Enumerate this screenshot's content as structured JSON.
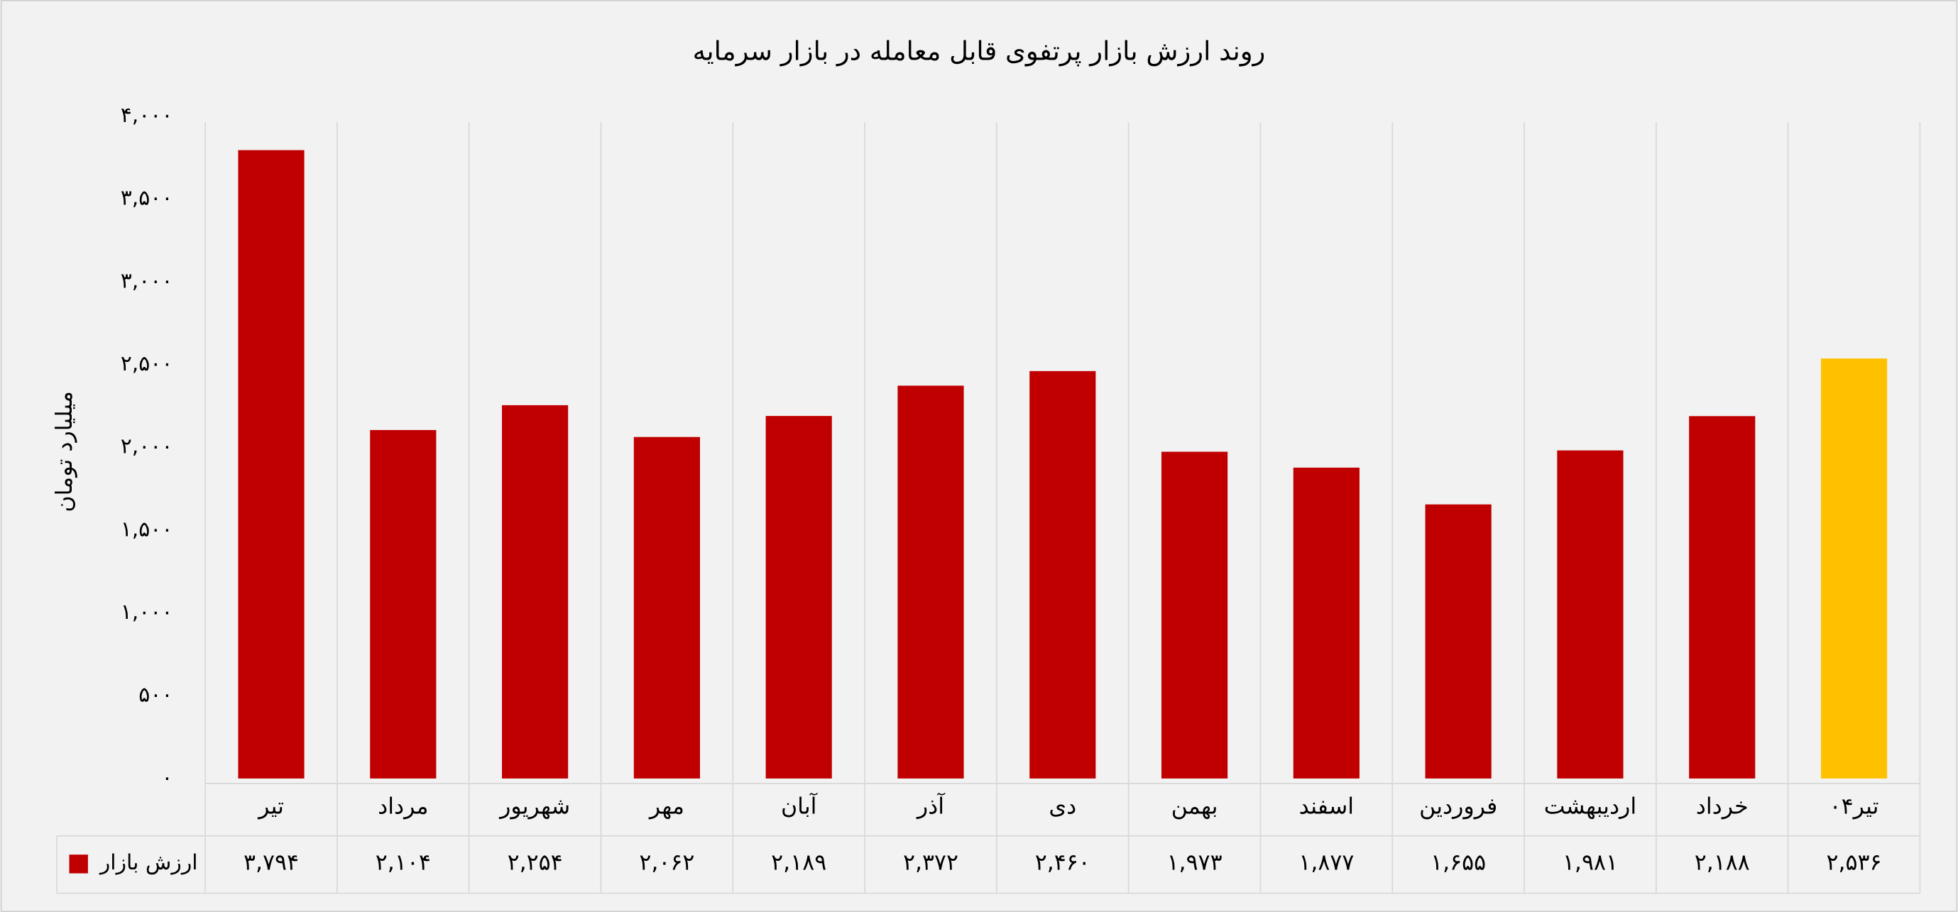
{
  "chart_data": {
    "type": "bar",
    "title": "روند ارزش بازار پرتفوی قابل معامله در بازار سرمایه",
    "y_label": "میلیارد تومان",
    "categories": [
      "تیر",
      "مرداد",
      "شهریور",
      "مهر",
      "آبان",
      "آذر",
      "دی",
      "بهمن",
      "اسفند",
      "فروردین",
      "اردیبهشت",
      "خرداد",
      "تیر۰۴"
    ],
    "series": [
      {
        "name": "ارزش بازار",
        "color": "#c00000",
        "colors": [
          "#c00000",
          "#c00000",
          "#c00000",
          "#c00000",
          "#c00000",
          "#c00000",
          "#c00000",
          "#c00000",
          "#c00000",
          "#c00000",
          "#c00000",
          "#c00000",
          "#ffc000"
        ],
        "values": [
          3794,
          2104,
          2254,
          2062,
          2189,
          2372,
          2460,
          1973,
          1877,
          1655,
          1981,
          2188,
          2536
        ],
        "value_labels": [
          "۳,۷۹۴",
          "۲,۱۰۴",
          "۲,۲۵۴",
          "۲,۰۶۲",
          "۲,۱۸۹",
          "۲,۳۷۲",
          "۲,۴۶۰",
          "۱,۹۷۳",
          "۱,۸۷۷",
          "۱,۶۵۵",
          "۱,۹۸۱",
          "۲,۱۸۸",
          "۲,۵۳۶"
        ]
      }
    ],
    "ylim": [
      0,
      4000
    ],
    "yticks": [
      {
        "value": 0,
        "label": "۰"
      },
      {
        "value": 500,
        "label": "۵۰۰"
      },
      {
        "value": 1000,
        "label": "۱,۰۰۰"
      },
      {
        "value": 1500,
        "label": "۱,۵۰۰"
      },
      {
        "value": 2000,
        "label": "۲,۰۰۰"
      },
      {
        "value": 2500,
        "label": "۲,۵۰۰"
      },
      {
        "value": 3000,
        "label": "۳,۰۰۰"
      },
      {
        "value": 3500,
        "label": "۳,۵۰۰"
      },
      {
        "value": 4000,
        "label": "۴,۰۰۰"
      }
    ]
  }
}
